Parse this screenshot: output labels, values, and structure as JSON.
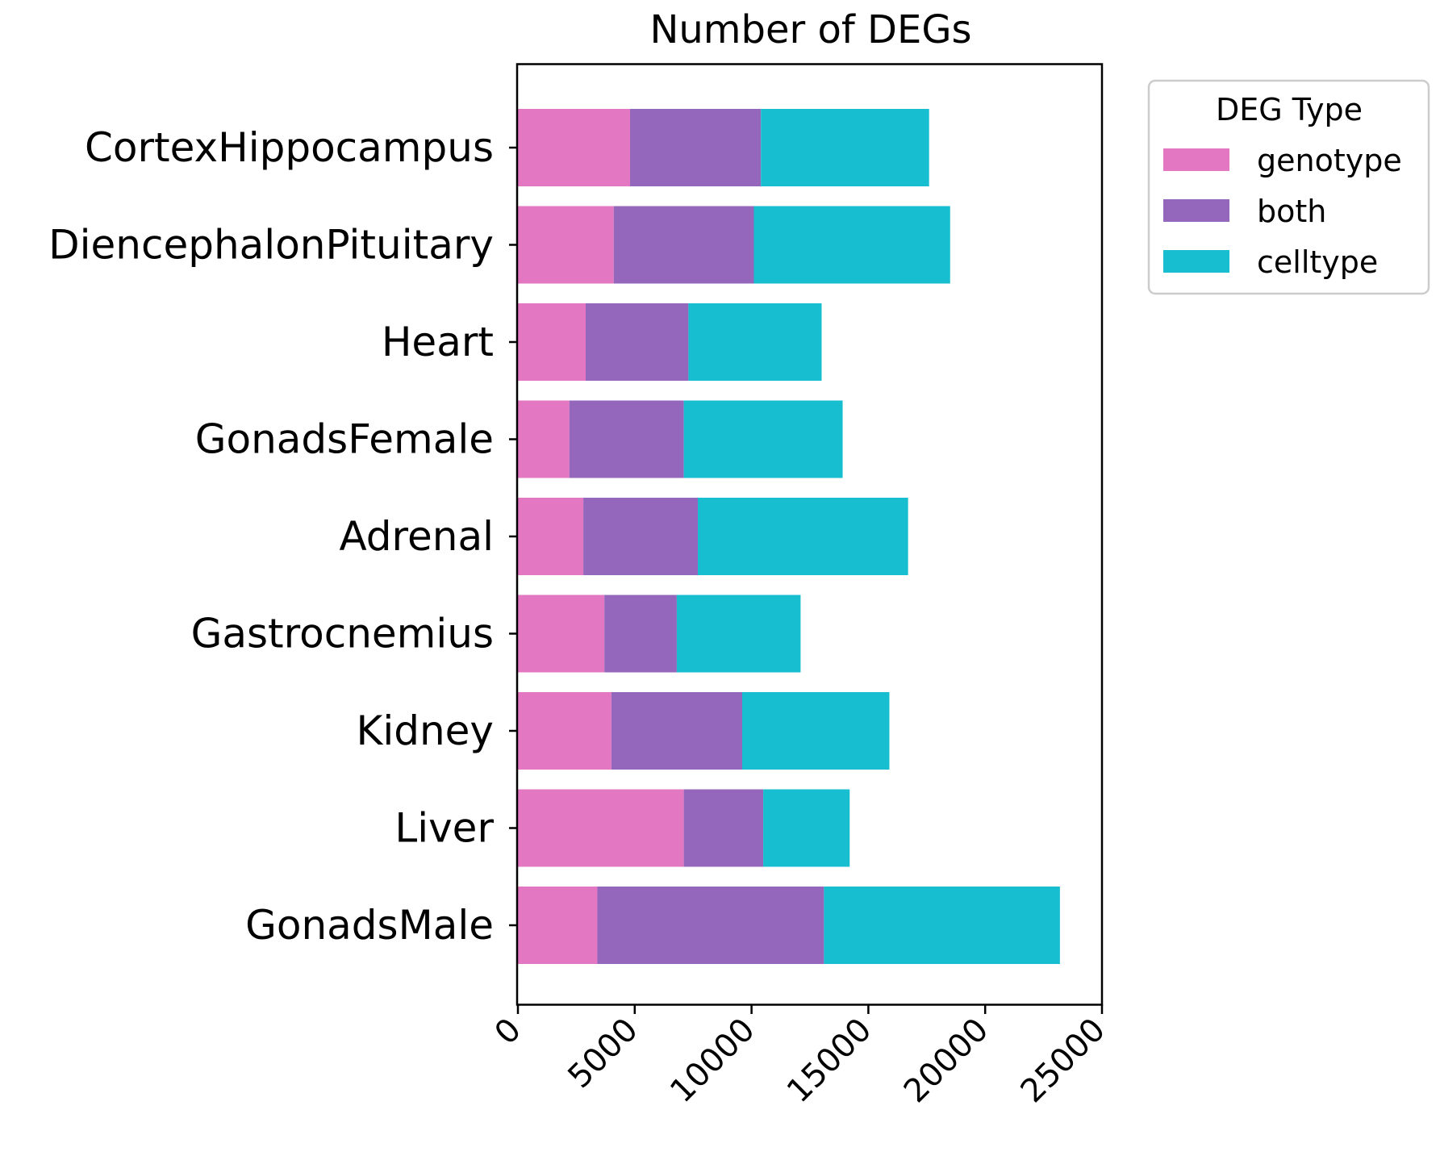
{
  "chart_data": {
    "type": "bar",
    "orientation": "horizontal",
    "stacked": true,
    "title": "Number of DEGs",
    "xlabel": "",
    "ylabel": "",
    "xlim": [
      0,
      25000
    ],
    "xticks": [
      0,
      5000,
      10000,
      15000,
      20000,
      25000
    ],
    "xtick_labels": [
      "0",
      "5000",
      "10000",
      "15000",
      "20000",
      "25000"
    ],
    "xtick_rotation": 45,
    "grid": false,
    "legend": {
      "title": "DEG Type",
      "placement": "outside-top-right"
    },
    "categories": [
      "CortexHippocampus",
      "DiencephalonPituitary",
      "Heart",
      "GonadsFemale",
      "Adrenal",
      "Gastrocnemius",
      "Kidney",
      "Liver",
      "GonadsMale"
    ],
    "series": [
      {
        "name": "genotype",
        "color": "#e377c2",
        "values": [
          4800,
          4100,
          2900,
          2200,
          2800,
          3700,
          4000,
          7100,
          3400
        ]
      },
      {
        "name": "both",
        "color": "#9467bd",
        "values": [
          5600,
          6000,
          4400,
          4900,
          4900,
          3100,
          5600,
          3400,
          9700
        ]
      },
      {
        "name": "celltype",
        "color": "#17becf",
        "values": [
          7200,
          8400,
          5700,
          6800,
          9000,
          5300,
          6300,
          3700,
          10100
        ]
      }
    ]
  }
}
